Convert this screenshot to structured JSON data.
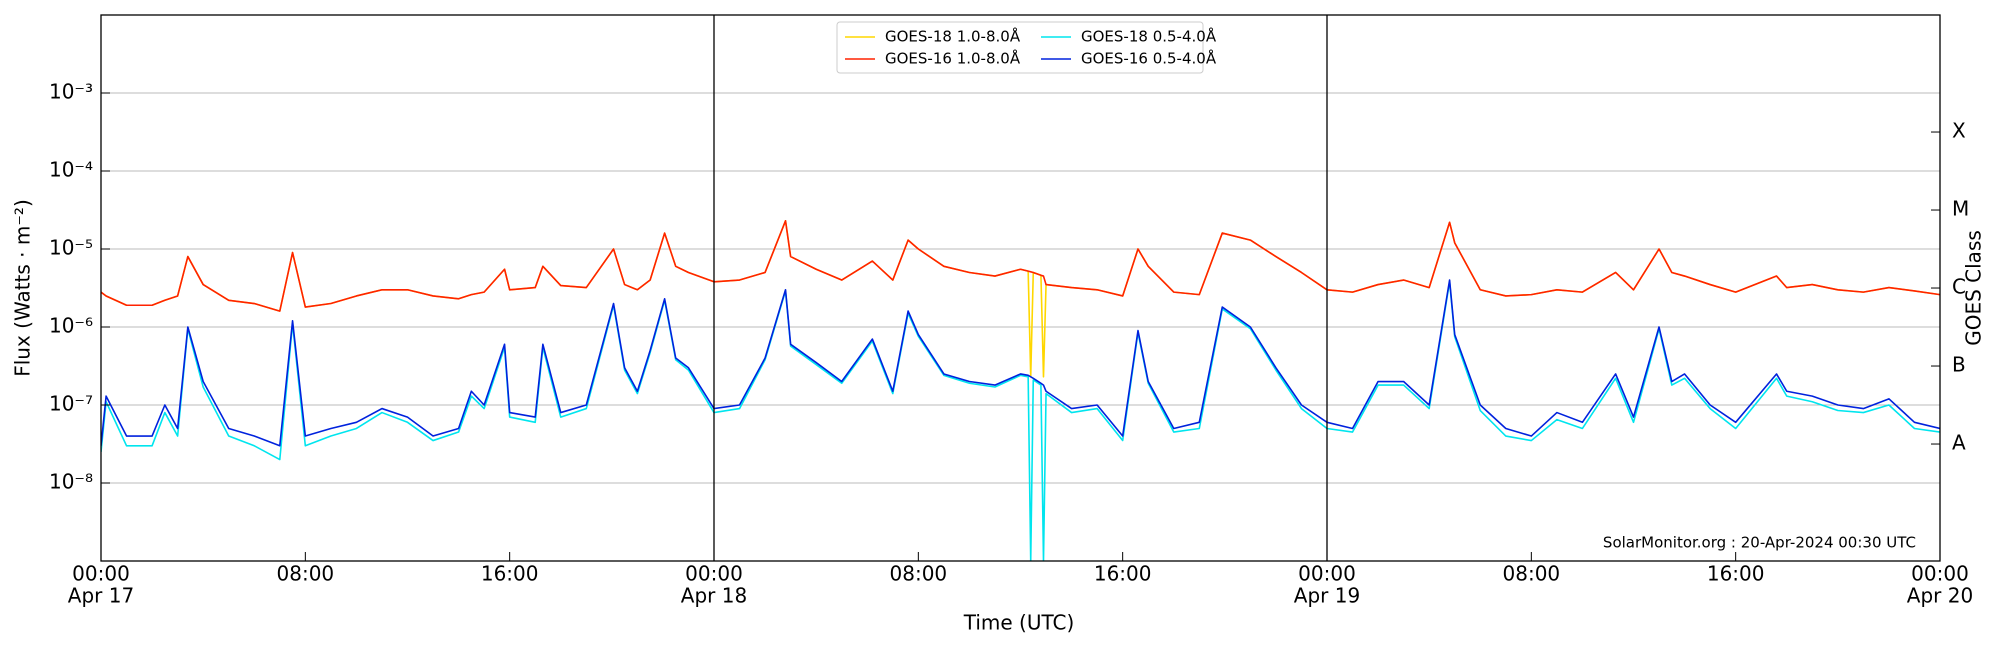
{
  "chart_data": {
    "type": "line",
    "ylabel": "Flux (Watts · m⁻²)",
    "xlabel": "Time (UTC)",
    "y2label": "GOES Class",
    "annotation": "SolarMonitor.org : 20-Apr-2024 00:30 UTC",
    "log": true,
    "grid": true,
    "legend": "upper center",
    "xlim": [
      "Apr 17 00:00",
      "Apr 20 00:00"
    ],
    "xticks": [
      {
        "value": "Apr 17 00:00",
        "label": "00:00"
      },
      {
        "value": "Apr 17 08:00",
        "label": "08:00"
      },
      {
        "value": "Apr 17 16:00",
        "label": "16:00"
      },
      {
        "value": "Apr 18 00:00",
        "label": "00:00"
      },
      {
        "value": "Apr 18 08:00",
        "label": "08:00"
      },
      {
        "value": "Apr 18 16:00",
        "label": "16:00"
      },
      {
        "value": "Apr 19 00:00",
        "label": "00:00"
      },
      {
        "value": "Apr 19 08:00",
        "label": "08:00"
      },
      {
        "value": "Apr 19 16:00",
        "label": "16:00"
      },
      {
        "value": "Apr 20 00:00",
        "label": "00:00"
      }
    ],
    "xtick_dates": [
      {
        "value": "Apr 17 00:00",
        "label": "Apr 17"
      },
      {
        "value": "Apr 18 00:00",
        "label": "Apr 18"
      },
      {
        "value": "Apr 19 00:00",
        "label": "Apr 19"
      },
      {
        "value": "Apr 20 00:00",
        "label": "Apr 20"
      }
    ],
    "ylim": [
      1e-09,
      0.01
    ],
    "yticks": [
      {
        "value": 1e-08,
        "label": "10⁻⁸"
      },
      {
        "value": 1e-07,
        "label": "10⁻⁷"
      },
      {
        "value": 1e-06,
        "label": "10⁻⁶"
      },
      {
        "value": 1e-05,
        "label": "10⁻⁵"
      },
      {
        "value": 0.0001,
        "label": "10⁻⁴"
      },
      {
        "value": 0.001,
        "label": "10⁻³"
      }
    ],
    "y2lim": [
      1e-09,
      0.01
    ],
    "y2ticks": [
      {
        "value": 3.16e-08,
        "label": "A"
      },
      {
        "value": 3.16e-07,
        "label": "B"
      },
      {
        "value": 3.16e-06,
        "label": "C"
      },
      {
        "value": 3.16e-05,
        "label": "M"
      },
      {
        "value": 0.000316,
        "label": "X"
      }
    ],
    "x": [
      "Apr 17 00:00",
      "Apr 17 00:12",
      "Apr 17 01:00",
      "Apr 17 02:00",
      "Apr 17 02:30",
      "Apr 17 03:00",
      "Apr 17 03:24",
      "Apr 17 04:00",
      "Apr 17 05:00",
      "Apr 17 06:00",
      "Apr 17 07:00",
      "Apr 17 07:30",
      "Apr 17 08:00",
      "Apr 17 09:00",
      "Apr 17 10:00",
      "Apr 17 11:00",
      "Apr 17 12:00",
      "Apr 17 13:00",
      "Apr 17 14:00",
      "Apr 17 14:30",
      "Apr 17 15:00",
      "Apr 17 15:48",
      "Apr 17 16:00",
      "Apr 17 17:00",
      "Apr 17 17:18",
      "Apr 17 18:00",
      "Apr 17 19:00",
      "Apr 17 20:04",
      "Apr 17 20:30",
      "Apr 17 21:00",
      "Apr 17 21:30",
      "Apr 17 22:04",
      "Apr 17 22:30",
      "Apr 17 23:00",
      "Apr 18 00:00",
      "Apr 18 01:00",
      "Apr 18 02:00",
      "Apr 18 02:48",
      "Apr 18 03:00",
      "Apr 18 04:00",
      "Apr 18 05:00",
      "Apr 18 06:12",
      "Apr 18 07:00",
      "Apr 18 07:36",
      "Apr 18 08:00",
      "Apr 18 09:00",
      "Apr 18 10:00",
      "Apr 18 11:00",
      "Apr 18 12:00",
      "Apr 18 12:18",
      "Apr 18 12:24",
      "Apr 18 12:30",
      "Apr 18 12:48",
      "Apr 18 12:54",
      "Apr 18 13:00",
      "Apr 18 14:00",
      "Apr 18 15:00",
      "Apr 18 16:00",
      "Apr 18 16:36",
      "Apr 18 17:00",
      "Apr 18 18:00",
      "Apr 18 19:00",
      "Apr 18 19:54",
      "Apr 18 21:00",
      "Apr 18 22:00",
      "Apr 18 23:00",
      "Apr 19 00:00",
      "Apr 19 01:00",
      "Apr 19 02:00",
      "Apr 19 03:00",
      "Apr 19 04:00",
      "Apr 19 04:48",
      "Apr 19 05:00",
      "Apr 19 06:00",
      "Apr 19 07:00",
      "Apr 19 08:00",
      "Apr 19 09:00",
      "Apr 19 10:00",
      "Apr 19 11:18",
      "Apr 19 12:00",
      "Apr 19 13:00",
      "Apr 19 13:30",
      "Apr 19 14:00",
      "Apr 19 15:00",
      "Apr 19 16:00",
      "Apr 19 17:36",
      "Apr 19 18:00",
      "Apr 19 19:00",
      "Apr 19 20:00",
      "Apr 19 21:00",
      "Apr 19 22:00",
      "Apr 19 23:00",
      "Apr 20 00:00"
    ],
    "series": [
      {
        "name": "GOES-18 1.0-8.0Å",
        "color": "#ffd700",
        "values": [
          2.8e-06,
          2.5e-06,
          1.9e-06,
          1.9e-06,
          2.2e-06,
          2.5e-06,
          8e-06,
          3.5e-06,
          2.2e-06,
          2e-06,
          1.6e-06,
          9e-06,
          1.8e-06,
          2e-06,
          2.5e-06,
          3e-06,
          3e-06,
          2.5e-06,
          2.3e-06,
          2.6e-06,
          2.8e-06,
          5.5e-06,
          3e-06,
          3.2e-06,
          6e-06,
          3.4e-06,
          3.2e-06,
          1e-05,
          3.5e-06,
          3e-06,
          4e-06,
          1.6e-05,
          6e-06,
          5e-06,
          3.8e-06,
          4e-06,
          5e-06,
          2.3e-05,
          8e-06,
          5.5e-06,
          4e-06,
          7e-06,
          4e-06,
          1.3e-05,
          1e-05,
          6e-06,
          5e-06,
          4.5e-06,
          5.5e-06,
          5.2e-06,
          2.3e-07,
          5e-06,
          4.6e-06,
          2.3e-07,
          3.5e-06,
          3.2e-06,
          3e-06,
          2.5e-06,
          1e-05,
          6e-06,
          2.8e-06,
          2.6e-06,
          1.6e-05,
          1.3e-05,
          8e-06,
          5e-06,
          3e-06,
          2.8e-06,
          3.5e-06,
          4e-06,
          3.2e-06,
          2.2e-05,
          1.2e-05,
          3e-06,
          2.5e-06,
          2.6e-06,
          3e-06,
          2.8e-06,
          5e-06,
          3e-06,
          1e-05,
          5e-06,
          4.5e-06,
          3.5e-06,
          2.8e-06,
          4.5e-06,
          3.2e-06,
          3.5e-06,
          3e-06,
          2.8e-06,
          3.2e-06,
          2.9e-06,
          2.6e-06
        ]
      },
      {
        "name": "GOES-16 1.0-8.0Å",
        "color": "#ff2200",
        "values": [
          2.8e-06,
          2.5e-06,
          1.9e-06,
          1.9e-06,
          2.2e-06,
          2.5e-06,
          8e-06,
          3.5e-06,
          2.2e-06,
          2e-06,
          1.6e-06,
          9e-06,
          1.8e-06,
          2e-06,
          2.5e-06,
          3e-06,
          3e-06,
          2.5e-06,
          2.3e-06,
          2.6e-06,
          2.8e-06,
          5.5e-06,
          3e-06,
          3.2e-06,
          6e-06,
          3.4e-06,
          3.2e-06,
          1e-05,
          3.5e-06,
          3e-06,
          4e-06,
          1.6e-05,
          6e-06,
          5e-06,
          3.8e-06,
          4e-06,
          5e-06,
          2.3e-05,
          8e-06,
          5.5e-06,
          4e-06,
          7e-06,
          4e-06,
          1.3e-05,
          1e-05,
          6e-06,
          5e-06,
          4.5e-06,
          5.5e-06,
          5.2e-06,
          5.1e-06,
          5e-06,
          4.6e-06,
          4.5e-06,
          3.5e-06,
          3.2e-06,
          3e-06,
          2.5e-06,
          1e-05,
          6e-06,
          2.8e-06,
          2.6e-06,
          1.6e-05,
          1.3e-05,
          8e-06,
          5e-06,
          3e-06,
          2.8e-06,
          3.5e-06,
          4e-06,
          3.2e-06,
          2.2e-05,
          1.2e-05,
          3e-06,
          2.5e-06,
          2.6e-06,
          3e-06,
          2.8e-06,
          5e-06,
          3e-06,
          1e-05,
          5e-06,
          4.5e-06,
          3.5e-06,
          2.8e-06,
          4.5e-06,
          3.2e-06,
          3.5e-06,
          3e-06,
          2.8e-06,
          3.2e-06,
          2.9e-06,
          2.6e-06
        ]
      },
      {
        "name": "GOES-18 0.5-4.0Å",
        "color": "#00e5ee",
        "values": [
          2.5e-08,
          1.1e-07,
          3e-08,
          3e-08,
          8e-08,
          4e-08,
          9.5e-07,
          1.7e-07,
          4e-08,
          3e-08,
          2e-08,
          1.1e-06,
          3e-08,
          4e-08,
          5e-08,
          8e-08,
          6e-08,
          3.5e-08,
          4.5e-08,
          1.3e-07,
          9e-08,
          5.5e-07,
          7e-08,
          6e-08,
          5.5e-07,
          7e-08,
          9e-08,
          1.9e-06,
          2.8e-07,
          1.4e-07,
          4.7e-07,
          2.2e-06,
          3.8e-07,
          2.8e-07,
          8e-08,
          9e-08,
          3.8e-07,
          2.9e-06,
          5.7e-07,
          3.3e-07,
          1.9e-07,
          6.6e-07,
          1.4e-07,
          1.5e-06,
          7.6e-07,
          2.4e-07,
          1.9e-07,
          1.7e-07,
          2.4e-07,
          2.3e-07,
          1e-09,
          2.1e-07,
          1.8e-07,
          1e-09,
          1.4e-07,
          8e-08,
          9e-08,
          3.5e-08,
          8.5e-07,
          1.9e-07,
          4.5e-08,
          5e-08,
          1.7e-06,
          9.5e-07,
          2.8e-07,
          9e-08,
          5e-08,
          4.5e-08,
          1.8e-07,
          1.8e-07,
          9e-08,
          3.8e-06,
          7.5e-07,
          8.5e-08,
          4e-08,
          3.5e-08,
          6.5e-08,
          5e-08,
          2.2e-07,
          6e-08,
          9.5e-07,
          1.8e-07,
          2.2e-07,
          9e-08,
          5e-08,
          2.2e-07,
          1.3e-07,
          1.1e-07,
          8.5e-08,
          8e-08,
          1e-07,
          5e-08,
          4.5e-08
        ]
      },
      {
        "name": "GOES-16 0.5-4.0Å",
        "color": "#0022dd",
        "values": [
          3e-08,
          1.3e-07,
          4e-08,
          4e-08,
          1e-07,
          5e-08,
          1e-06,
          2e-07,
          5e-08,
          4e-08,
          3e-08,
          1.2e-06,
          4e-08,
          5e-08,
          6e-08,
          9e-08,
          7e-08,
          4e-08,
          5e-08,
          1.5e-07,
          1e-07,
          6e-07,
          8e-08,
          7e-08,
          6e-07,
          8e-08,
          1e-07,
          2e-06,
          3e-07,
          1.5e-07,
          5e-07,
          2.3e-06,
          4e-07,
          3e-07,
          9e-08,
          1e-07,
          4e-07,
          3e-06,
          6e-07,
          3.5e-07,
          2e-07,
          7e-07,
          1.5e-07,
          1.6e-06,
          8e-07,
          2.5e-07,
          2e-07,
          1.8e-07,
          2.5e-07,
          2.4e-07,
          2.3e-07,
          2.2e-07,
          1.9e-07,
          1.8e-07,
          1.5e-07,
          9e-08,
          1e-07,
          4e-08,
          9e-07,
          2e-07,
          5e-08,
          6e-08,
          1.8e-06,
          1e-06,
          3e-07,
          1e-07,
          6e-08,
          5e-08,
          2e-07,
          2e-07,
          1e-07,
          4e-06,
          8e-07,
          1e-07,
          5e-08,
          4e-08,
          8e-08,
          6e-08,
          2.5e-07,
          7e-08,
          1e-06,
          2e-07,
          2.5e-07,
          1e-07,
          6e-08,
          2.5e-07,
          1.5e-07,
          1.3e-07,
          1e-07,
          9e-08,
          1.2e-07,
          6e-08,
          5e-08
        ]
      }
    ]
  }
}
